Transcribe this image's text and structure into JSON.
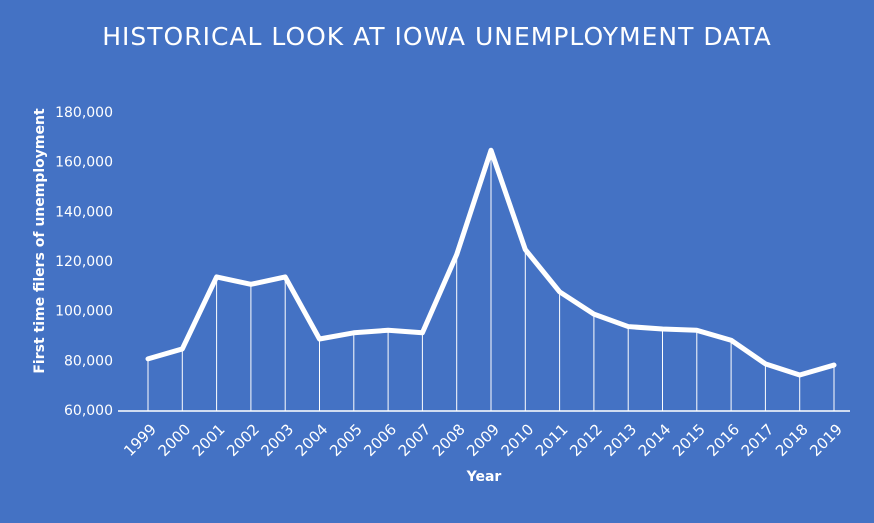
{
  "chart_data": {
    "type": "line",
    "title": "HISTORICAL LOOK AT IOWA UNEMPLOYMENT DATA",
    "x_label": "Year",
    "y_label": "First time filers of unemployment",
    "categories": [
      "1999",
      "2000",
      "2001",
      "2002",
      "2003",
      "2004",
      "2005",
      "2006",
      "2007",
      "2008",
      "2009",
      "2010",
      "2011",
      "2012",
      "2013",
      "2014",
      "2015",
      "2016",
      "2017",
      "2018",
      "2019"
    ],
    "values": [
      81000,
      85000,
      114000,
      111000,
      114000,
      89000,
      91500,
      92500,
      91500,
      123000,
      165000,
      125000,
      108000,
      99000,
      94000,
      93000,
      92500,
      88500,
      79000,
      74500,
      78500
    ],
    "color": "#ffffff",
    "ylim": [
      60000,
      180000
    ],
    "yticks": [
      {
        "value": 60000,
        "label": "60,000"
      },
      {
        "value": 80000,
        "label": "80,000"
      },
      {
        "value": 100000,
        "label": "100,000"
      },
      {
        "value": 120000,
        "label": "120,000"
      },
      {
        "value": 140000,
        "label": "140,000"
      },
      {
        "value": 160000,
        "label": "160,000"
      },
      {
        "value": 180000,
        "label": "180,000"
      }
    ],
    "drop_lines": true
  }
}
